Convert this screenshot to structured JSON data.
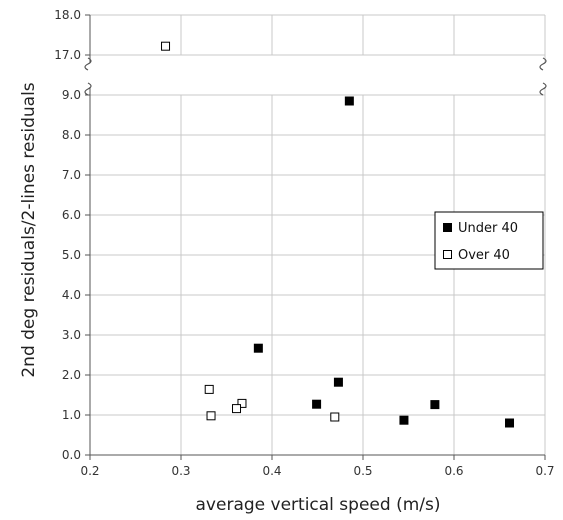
{
  "chart_data": {
    "type": "scatter",
    "title": "",
    "xlabel": "average vertical speed (m/s)",
    "ylabel": "2nd deg residuals/2-lines residuals",
    "xlim": [
      0.2,
      0.7
    ],
    "x_ticks": [
      "0.2",
      "0.3",
      "0.4",
      "0.5",
      "0.6",
      "0.7"
    ],
    "y_break": true,
    "y_lower_range": [
      0,
      9
    ],
    "y_upper_range": [
      17,
      18
    ],
    "y_ticks_lower": [
      "0.0",
      "1.0",
      "2.0",
      "3.0",
      "4.0",
      "5.0",
      "6.0",
      "7.0",
      "8.0",
      "9.0"
    ],
    "y_ticks_upper": [
      "17.0",
      "18.0"
    ],
    "grid": true,
    "legend_position": "right",
    "series": [
      {
        "name": "Under 40",
        "marker": "filled-square",
        "color": "#000000",
        "points": [
          {
            "x": 0.485,
            "y": 8.85
          },
          {
            "x": 0.385,
            "y": 2.67
          },
          {
            "x": 0.473,
            "y": 1.82
          },
          {
            "x": 0.449,
            "y": 1.27
          },
          {
            "x": 0.579,
            "y": 1.26
          },
          {
            "x": 0.545,
            "y": 0.87
          },
          {
            "x": 0.661,
            "y": 0.8
          }
        ]
      },
      {
        "name": "Over 40",
        "marker": "open-square",
        "color": "#000000",
        "points": [
          {
            "x": 0.283,
            "y": 17.22
          },
          {
            "x": 0.331,
            "y": 1.64
          },
          {
            "x": 0.333,
            "y": 0.98
          },
          {
            "x": 0.367,
            "y": 1.29
          },
          {
            "x": 0.361,
            "y": 1.16
          },
          {
            "x": 0.469,
            "y": 0.95
          }
        ]
      }
    ]
  }
}
